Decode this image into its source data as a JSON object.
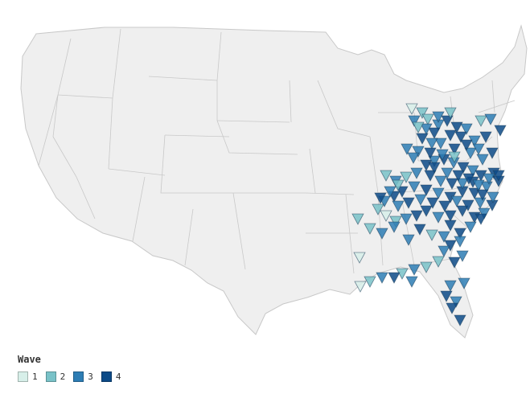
{
  "legend": {
    "title": "Wave",
    "items": [
      {
        "label": "1",
        "color": "#d7efe9"
      },
      {
        "label": "2",
        "color": "#79c2c8"
      },
      {
        "label": "3",
        "color": "#2d7db4"
      },
      {
        "label": "4",
        "color": "#0c4a87"
      }
    ]
  },
  "colors": {
    "land": "#efefef",
    "borders": "#c8c8c8"
  }
}
